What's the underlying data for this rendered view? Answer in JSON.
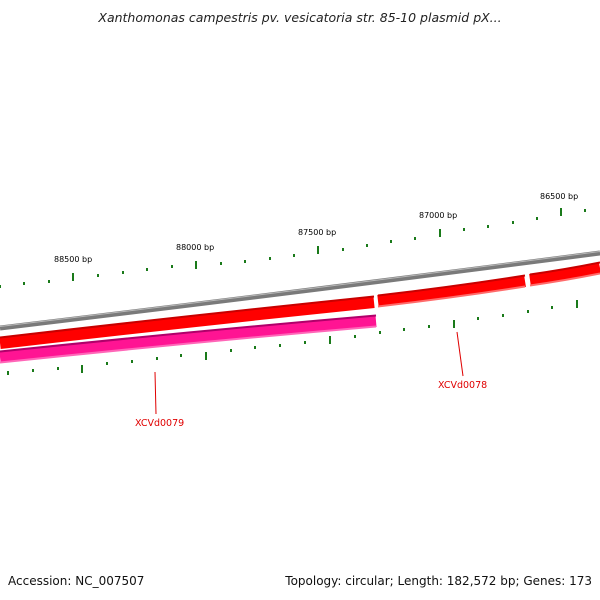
{
  "title": "Xanthomonas campestris pv. vesicatoria str. 85-10 plasmid pX...",
  "footer": {
    "accession": "Accession: NC_007507",
    "summary": "Topology: circular; Length: 182,572 bp; Genes: 173"
  },
  "scale_labels": [
    "88500 bp",
    "88000 bp",
    "87500 bp",
    "87000 bp",
    "86500 bp"
  ],
  "gene_labels": [
    "XCVd0079",
    "XCVd0078"
  ],
  "colors": {
    "backbone": "#7a7a7a",
    "forward_gene": "#ff0000",
    "reverse_gene": "#ff1493",
    "ticks": "#1a7a1a",
    "gene_label": "#e00000"
  }
}
